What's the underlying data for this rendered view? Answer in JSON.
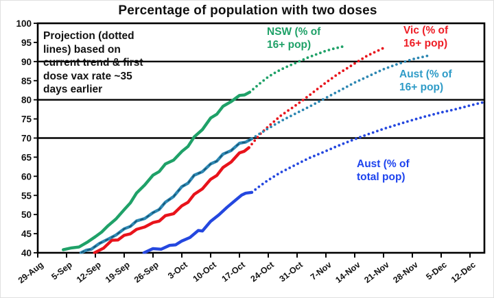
{
  "chart_data": {
    "type": "line",
    "title": "Percentage of population with two doses",
    "annotation": "Projection (dotted\nlines) based on\ncurrent trend & first\ndose vax rate ~35\ndays earlier",
    "x_axis": {
      "tick_labels": [
        "29-Aug",
        "5-Sep",
        "12-Sep",
        "19-Sep",
        "26-Sep",
        "3-Oct",
        "10-Oct",
        "17-Oct",
        "24-Oct",
        "31-Oct",
        "7-Nov",
        "14-Nov",
        "21-Nov",
        "28-Nov",
        "5-Dec",
        "12-Dec"
      ],
      "tick_days": [
        0,
        7,
        14,
        21,
        28,
        35,
        42,
        49,
        56,
        63,
        70,
        77,
        84,
        91,
        98,
        105
      ]
    },
    "y_axis": {
      "min": 40,
      "max": 100,
      "tick_values": [
        100,
        95,
        90,
        85,
        80,
        75,
        70,
        65,
        60,
        55,
        50,
        45,
        40
      ]
    },
    "gridlines_at": [
      70,
      80,
      90
    ],
    "frame_color": "#000000",
    "legend_position": "inside-plot",
    "series": [
      {
        "id": "nsw",
        "label": "NSW (% of\n16+ pop)",
        "color": "#1fa168",
        "label_color": "#1fa168",
        "solid": [
          [
            6.2,
            40.8
          ],
          [
            8,
            41
          ],
          [
            10,
            41.6
          ],
          [
            12,
            42.8
          ],
          [
            14,
            44
          ],
          [
            17,
            47
          ],
          [
            19,
            49
          ],
          [
            21,
            51
          ],
          [
            24,
            55.5
          ],
          [
            26,
            58
          ],
          [
            28,
            60
          ],
          [
            31,
            63
          ],
          [
            33,
            64.5
          ],
          [
            35,
            66.2
          ],
          [
            38,
            70
          ],
          [
            40,
            72.5
          ],
          [
            42,
            75
          ],
          [
            45,
            78
          ],
          [
            47,
            79.8
          ],
          [
            49,
            81
          ],
          [
            51.5,
            82
          ]
        ],
        "projection": [
          [
            51.5,
            82
          ],
          [
            54,
            84.3
          ],
          [
            56,
            86
          ],
          [
            58,
            87.3
          ],
          [
            60,
            88.4
          ],
          [
            63,
            89.8
          ],
          [
            66,
            91.2
          ],
          [
            68,
            92
          ],
          [
            70,
            92.8
          ],
          [
            72,
            93.4
          ],
          [
            74.5,
            94
          ]
        ]
      },
      {
        "id": "vic",
        "label": "Vic (% of\n16+ pop)",
        "color": "#e8131b",
        "label_color": "#ee1c24",
        "solid": [
          [
            13.8,
            40
          ],
          [
            16,
            41.5
          ],
          [
            18,
            43
          ],
          [
            21,
            44.3
          ],
          [
            24,
            46
          ],
          [
            26,
            47
          ],
          [
            28,
            47.6
          ],
          [
            31,
            49.5
          ],
          [
            33,
            50.5
          ],
          [
            35,
            52
          ],
          [
            38,
            55
          ],
          [
            40,
            57
          ],
          [
            42,
            59
          ],
          [
            45,
            62
          ],
          [
            47,
            64
          ],
          [
            49,
            66
          ],
          [
            51.3,
            67.5
          ]
        ],
        "projection": [
          [
            51.3,
            67.5
          ],
          [
            54,
            71
          ],
          [
            56,
            73
          ],
          [
            59,
            75.8
          ],
          [
            63,
            78.8
          ],
          [
            66,
            81.2
          ],
          [
            70,
            84.5
          ],
          [
            73,
            86.8
          ],
          [
            77,
            89.5
          ],
          [
            80,
            91.5
          ],
          [
            84.5,
            93.8
          ]
        ]
      },
      {
        "id": "aust16",
        "label": "Aust (% of\n16+ pop)",
        "color": "#2d87b2",
        "label_color": "#2e9bc7",
        "dash_overlay": "#14506e",
        "solid": [
          [
            10.5,
            40
          ],
          [
            13,
            41.2
          ],
          [
            15,
            42.3
          ],
          [
            17,
            43.5
          ],
          [
            19,
            44.8
          ],
          [
            21,
            46
          ],
          [
            24,
            48.2
          ],
          [
            26,
            49.2
          ],
          [
            28,
            50.2
          ],
          [
            31,
            53
          ],
          [
            33,
            55
          ],
          [
            35,
            57
          ],
          [
            38,
            60
          ],
          [
            40,
            61.5
          ],
          [
            42,
            63
          ],
          [
            45,
            65.5
          ],
          [
            47,
            67
          ],
          [
            49,
            68.5
          ],
          [
            52,
            69.8
          ]
        ],
        "projection": [
          [
            52,
            69.8
          ],
          [
            54,
            71.2
          ],
          [
            56,
            72.5
          ],
          [
            59,
            74.4
          ],
          [
            63,
            76.6
          ],
          [
            66,
            78.2
          ],
          [
            70,
            80.5
          ],
          [
            73,
            82.2
          ],
          [
            77,
            84.5
          ],
          [
            80,
            86
          ],
          [
            84,
            88
          ],
          [
            87,
            89.2
          ],
          [
            91,
            90.6
          ],
          [
            95.5,
            91.7
          ]
        ]
      },
      {
        "id": "aust_total",
        "label": "Aust (% of\ntotal pop)",
        "color": "#2447df",
        "label_color": "#1d43ee",
        "solid": [
          [
            25.8,
            40
          ],
          [
            28,
            40.8
          ],
          [
            30,
            41.2
          ],
          [
            32,
            41.8
          ],
          [
            35,
            42.8
          ],
          [
            37,
            44.2
          ],
          [
            39,
            45.8
          ],
          [
            40,
            46
          ],
          [
            42,
            48
          ],
          [
            44,
            50
          ],
          [
            46,
            52
          ],
          [
            48,
            53.5
          ],
          [
            49.5,
            55.2
          ],
          [
            50.5,
            55.8
          ],
          [
            52,
            55.8
          ]
        ],
        "projection": [
          [
            52,
            55.8
          ],
          [
            54,
            57.5
          ],
          [
            56,
            59
          ],
          [
            59,
            61
          ],
          [
            63,
            63.2
          ],
          [
            66,
            64.8
          ],
          [
            70,
            66.6
          ],
          [
            73,
            68
          ],
          [
            77,
            69.7
          ],
          [
            80,
            70.9
          ],
          [
            84,
            72.4
          ],
          [
            87,
            73.4
          ],
          [
            91,
            74.7
          ],
          [
            94,
            75.6
          ],
          [
            98,
            76.7
          ],
          [
            101,
            77.4
          ],
          [
            105,
            78.5
          ],
          [
            108.5,
            79.4
          ]
        ]
      }
    ]
  }
}
